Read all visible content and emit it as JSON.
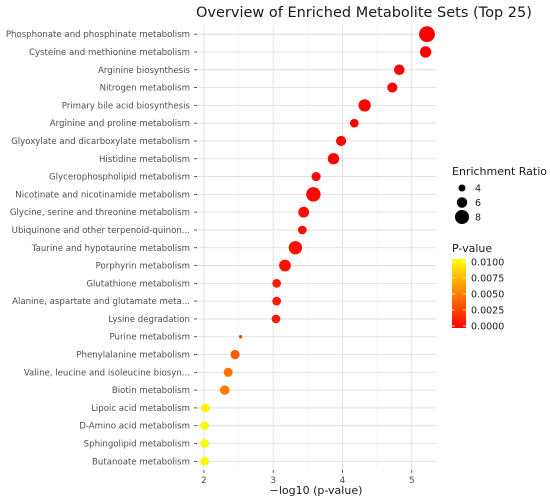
{
  "chart_data": {
    "type": "scatter",
    "title": "Overview of Enriched Metabolite Sets (Top 25)",
    "xlabel": "−log10 (p-value)",
    "ylabel": "",
    "xlim": [
      1.9,
      5.35
    ],
    "xticks": [
      "2",
      "3",
      "4",
      "5"
    ],
    "grid": true,
    "legend_position": "right",
    "categories": [
      "Phosphonate and phosphinate metabolism",
      "Cysteine and methionine metabolism",
      "Arginine biosynthesis",
      "Nitrogen metabolism",
      "Primary bile acid biosynthesis",
      "Arginine and proline metabolism",
      "Glyoxylate and dicarboxylate metabolism",
      "Histidine metabolism",
      "Glycerophospholipid metabolism",
      "Nicotinate and nicotinamide metabolism",
      "Glycine, serine and threonine metabolism",
      "Ubiquinone and other terpenoid-quinon...",
      "Taurine and hypotaurine metabolism",
      "Porphyrin metabolism",
      "Glutathione metabolism",
      "Alanine, aspartate and glutamate meta...",
      "Lysine degradation",
      "Purine metabolism",
      "Phenylalanine metabolism",
      "Valine, leucine and isoleucine biosyn...",
      "Biotin metabolism",
      "Lipoic acid metabolism",
      "D-Amino acid metabolism",
      "Sphingolipid metabolism",
      "Butanoate metabolism"
    ],
    "neg_log10_p": [
      5.22,
      5.2,
      4.82,
      4.72,
      4.32,
      4.17,
      3.98,
      3.87,
      3.62,
      3.58,
      3.44,
      3.42,
      3.32,
      3.17,
      3.05,
      3.05,
      3.04,
      2.53,
      2.45,
      2.35,
      2.3,
      2.02,
      2.01,
      2.01,
      2.01
    ],
    "p_value": [
      6e-06,
      6.3e-06,
      1.5e-05,
      1.9e-05,
      4.8e-05,
      6.8e-05,
      0.000105,
      0.000135,
      0.00024,
      0.00026,
      0.00036,
      0.00038,
      0.00048,
      0.00068,
      0.00089,
      0.00089,
      0.00091,
      0.00295,
      0.00355,
      0.00447,
      0.005,
      0.0095,
      0.0098,
      0.0098,
      0.0098
    ],
    "enrichment_ratio": [
      9.0,
      6.5,
      6.0,
      5.8,
      7.0,
      5.0,
      5.8,
      6.5,
      5.2,
      8.2,
      6.2,
      5.0,
      7.6,
      6.7,
      5.0,
      5.0,
      5.0,
      2.0,
      5.3,
      5.2,
      5.5,
      5.0,
      5.0,
      5.0,
      5.0
    ],
    "size_legend": {
      "title": "Enrichment Ratio",
      "values": [
        4,
        6,
        8
      ],
      "labels": [
        "4",
        "6",
        "8"
      ]
    },
    "color_legend": {
      "title": "P-value",
      "range": [
        0.0,
        0.01
      ],
      "labels": [
        "0.0100",
        "0.0075",
        "0.0050",
        "0.0025",
        "0.0000"
      ],
      "colors": [
        "#ff0000",
        "#ffff00"
      ]
    }
  }
}
